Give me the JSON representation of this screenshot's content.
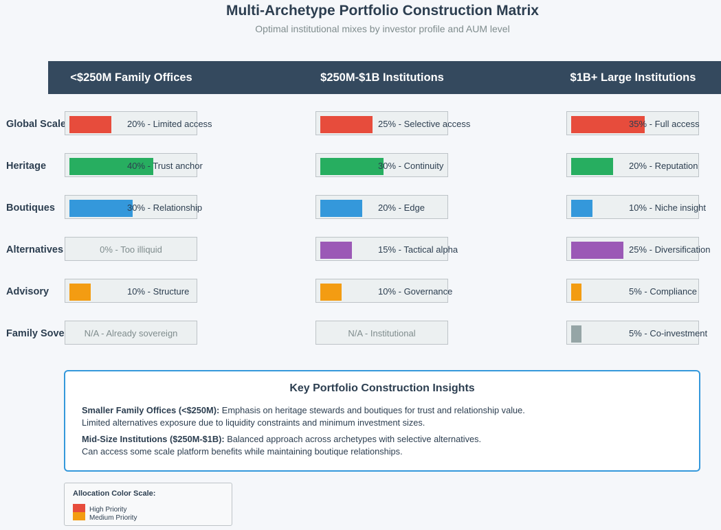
{
  "title": "Multi-Archetype Portfolio Construction Matrix",
  "subtitle": "Optimal institutional mixes by investor profile and AUM level",
  "columns": [
    {
      "label": "<$250M Family Offices"
    },
    {
      "label": "$250M-$1B Institutions"
    },
    {
      "label": "$1B+ Large Institutions"
    }
  ],
  "rows": [
    {
      "label": "Global Scale",
      "color": "#e74c3c",
      "cells": [
        {
          "value": 20,
          "text": "20% - Limited access"
        },
        {
          "value": 25,
          "text": "25% - Selective access"
        },
        {
          "value": 35,
          "text": "35% - Full access"
        }
      ]
    },
    {
      "label": "Heritage",
      "color": "#27ae60",
      "cells": [
        {
          "value": 40,
          "text": "40% - Trust anchor"
        },
        {
          "value": 30,
          "text": "30% - Continuity"
        },
        {
          "value": 20,
          "text": "20% - Reputation"
        }
      ]
    },
    {
      "label": "Boutiques",
      "color": "#3498db",
      "cells": [
        {
          "value": 30,
          "text": "30% - Relationship"
        },
        {
          "value": 20,
          "text": "20% - Edge"
        },
        {
          "value": 10,
          "text": "10% - Niche insight"
        }
      ]
    },
    {
      "label": "Alternatives",
      "color": "#9b59b6",
      "cells": [
        {
          "value": 0,
          "text": "0% - Too illiquid",
          "muted": true
        },
        {
          "value": 15,
          "text": "15% - Tactical alpha"
        },
        {
          "value": 25,
          "text": "25% - Diversification"
        }
      ]
    },
    {
      "label": "Advisory",
      "color": "#f39c12",
      "cells": [
        {
          "value": 10,
          "text": "10% - Structure"
        },
        {
          "value": 10,
          "text": "10% - Governance"
        },
        {
          "value": 5,
          "text": "5% - Compliance"
        }
      ]
    },
    {
      "label": "Family Sovereign",
      "color": "#95a5a6",
      "cells": [
        {
          "value": null,
          "text": "N/A - Already sovereign",
          "muted": true
        },
        {
          "value": null,
          "text": "N/A - Institutional",
          "muted": true
        },
        {
          "value": 5,
          "text": "5% - Co-investment"
        }
      ]
    }
  ],
  "insights": {
    "title": "Key Portfolio Construction Insights",
    "items": [
      {
        "heading": "Smaller Family Offices (<$250M):",
        "line1": "Emphasis on heritage stewards and boutiques for trust and relationship value.",
        "line2": "Limited alternatives exposure due to liquidity constraints and minimum investment sizes."
      },
      {
        "heading": "Mid-Size Institutions ($250M-$1B):",
        "line1": "Balanced approach across archetypes with selective alternatives.",
        "line2": "Can access some scale platform benefits while maintaining boutique relationships."
      }
    ]
  },
  "legend": {
    "title": "Allocation Color Scale:",
    "items": [
      {
        "label": "High Priority",
        "color": "#e74c3c"
      },
      {
        "label": "Medium Priority",
        "color": "#f39c12"
      }
    ]
  }
}
